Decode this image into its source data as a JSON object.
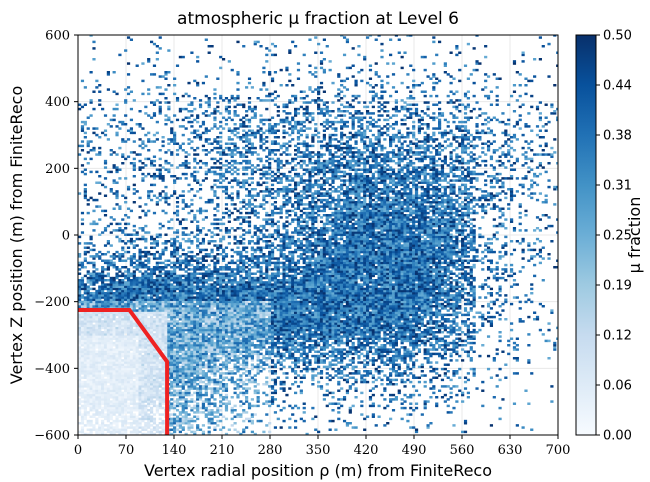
{
  "chart_data": {
    "type": "heatmap",
    "title": "atmospheric μ fraction at Level 6",
    "xlabel": "Vertex radial position ρ (m) from FiniteReco",
    "ylabel": "Vertex Z position (m) from FiniteReco",
    "xlim": [
      0,
      700
    ],
    "ylim": [
      -600,
      600
    ],
    "x_ticks": [
      "0",
      "70",
      "140",
      "210",
      "280",
      "350",
      "420",
      "490",
      "560",
      "630",
      "700"
    ],
    "y_ticks": [
      "600",
      "400",
      "200",
      "0",
      "−200",
      "−400",
      "−600"
    ],
    "colorbar": {
      "label": "μ fraction",
      "range": [
        0.0,
        0.5
      ],
      "ticks": [
        "0.50",
        "0.44",
        "0.38",
        "0.31",
        "0.25",
        "0.19",
        "0.12",
        "0.06",
        "0.00"
      ],
      "colormap": "Blues",
      "colors": [
        "#f7fbff",
        "#deebf7",
        "#c6dbef",
        "#9ecae1",
        "#6baed6",
        "#4292c6",
        "#2171b5",
        "#08519c",
        "#08306b"
      ]
    },
    "grid": true,
    "cut_line": {
      "color": "#ee2222",
      "points": [
        [
          0,
          -225
        ],
        [
          75,
          -225
        ],
        [
          130,
          -380
        ],
        [
          130,
          -600
        ]
      ]
    },
    "density_regions": [
      {
        "x": [
          0,
          130
        ],
        "y": [
          -600,
          -230
        ],
        "mu_fraction": 0.03
      },
      {
        "x": [
          130,
          280
        ],
        "y": [
          -600,
          -200
        ],
        "mu_fraction": 0.25
      },
      {
        "x": [
          0,
          580
        ],
        "y": [
          -300,
          0
        ],
        "mu_fraction": 0.35
      },
      {
        "x": [
          280,
          580
        ],
        "y": [
          -600,
          100
        ],
        "mu_fraction": 0.4
      },
      {
        "x": [
          0,
          700
        ],
        "y": [
          -600,
          600
        ],
        "mu_fraction": 0.42
      }
    ]
  }
}
